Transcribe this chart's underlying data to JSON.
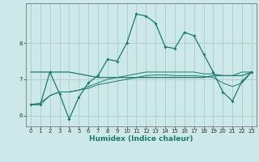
{
  "xlabel": "Humidex (Indice chaleur)",
  "background_color": "#cce8e8",
  "grid_color": "#aacccc",
  "line_color": "#1a7a6e",
  "x_values": [
    0,
    1,
    2,
    3,
    4,
    5,
    6,
    7,
    8,
    9,
    10,
    11,
    12,
    13,
    14,
    15,
    16,
    17,
    18,
    19,
    20,
    21,
    22,
    23
  ],
  "series1": [
    6.3,
    6.3,
    7.2,
    6.6,
    5.9,
    6.5,
    6.9,
    7.1,
    7.55,
    7.5,
    8.0,
    8.8,
    8.75,
    8.55,
    7.9,
    7.85,
    8.3,
    8.2,
    7.7,
    7.2,
    6.65,
    6.4,
    6.95,
    7.2
  ],
  "series2": [
    7.2,
    7.2,
    7.2,
    7.2,
    7.2,
    7.15,
    7.1,
    7.05,
    7.05,
    7.05,
    7.05,
    7.05,
    7.05,
    7.05,
    7.05,
    7.05,
    7.05,
    7.05,
    7.05,
    7.1,
    7.1,
    7.1,
    7.1,
    7.2
  ],
  "series3": [
    6.3,
    6.35,
    6.55,
    6.65,
    6.65,
    6.7,
    6.75,
    6.85,
    6.9,
    6.95,
    7.0,
    7.05,
    7.1,
    7.12,
    7.12,
    7.1,
    7.1,
    7.1,
    7.08,
    7.05,
    6.9,
    6.8,
    6.9,
    7.2
  ],
  "series4": [
    6.3,
    6.3,
    6.55,
    6.65,
    6.65,
    6.7,
    6.8,
    6.9,
    7.0,
    7.05,
    7.1,
    7.15,
    7.2,
    7.2,
    7.2,
    7.2,
    7.2,
    7.2,
    7.15,
    7.15,
    7.1,
    7.1,
    7.2,
    7.2
  ],
  "ylim": [
    5.7,
    9.1
  ],
  "yticks": [
    6,
    7,
    8
  ],
  "xlim": [
    -0.5,
    23.5
  ],
  "tick_fontsize": 5.0,
  "xlabel_fontsize": 6.5,
  "linewidth_main": 0.9,
  "linewidth_thin": 0.7,
  "marker_size": 2.0
}
